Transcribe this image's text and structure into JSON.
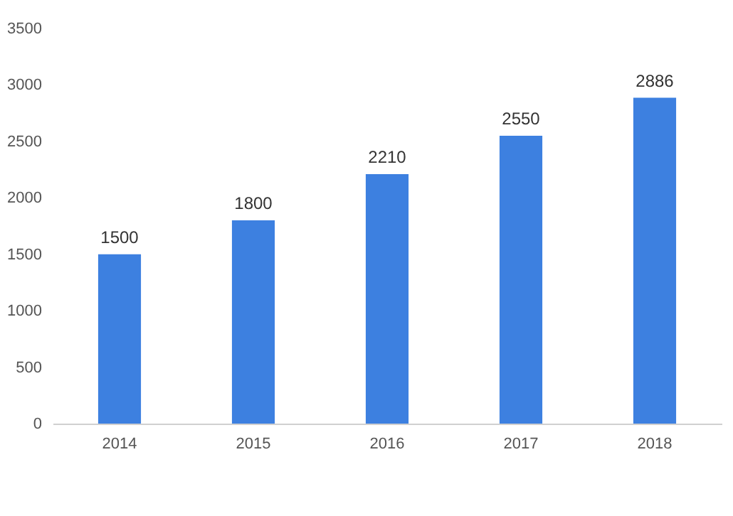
{
  "chart_data": {
    "type": "bar",
    "categories": [
      "2014",
      "2015",
      "2016",
      "2017",
      "2018"
    ],
    "values": [
      1500,
      1800,
      2210,
      2550,
      2886
    ],
    "color": "#3d80e0",
    "ylim": [
      0,
      3500
    ],
    "yticks": [
      0,
      500,
      1000,
      1500,
      2000,
      2500,
      3000,
      3500
    ],
    "grid": false,
    "data_labels": true
  }
}
